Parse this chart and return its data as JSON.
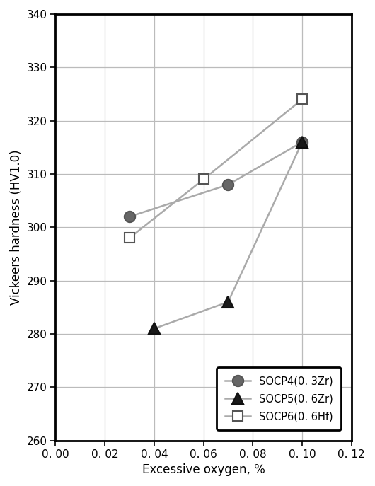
{
  "series": [
    {
      "label": "SOCP4(0. 3Zr)",
      "x": [
        0.03,
        0.07,
        0.1
      ],
      "y": [
        302,
        308,
        316
      ],
      "line_color": "#aaaaaa",
      "marker": "o",
      "marker_fc": "#666666",
      "marker_ec": "#555555",
      "markersize": 11,
      "linewidth": 1.8
    },
    {
      "label": "SOCP5(0. 6Zr)",
      "x": [
        0.04,
        0.07,
        0.1
      ],
      "y": [
        281,
        286,
        316
      ],
      "line_color": "#aaaaaa",
      "marker": "^",
      "marker_fc": "#1a1a1a",
      "marker_ec": "#111111",
      "markersize": 12,
      "linewidth": 1.8
    },
    {
      "label": "SOCP6(0. 6Hf)",
      "x": [
        0.03,
        0.06,
        0.1
      ],
      "y": [
        298,
        309,
        324
      ],
      "line_color": "#aaaaaa",
      "marker": "s",
      "marker_fc": "#ffffff",
      "marker_ec": "#555555",
      "markersize": 10,
      "linewidth": 1.8
    }
  ],
  "xlim": [
    0.0,
    0.12
  ],
  "ylim": [
    260,
    340
  ],
  "xticks": [
    0.0,
    0.02,
    0.04,
    0.06,
    0.08,
    0.1,
    0.12
  ],
  "yticks": [
    260,
    270,
    280,
    290,
    300,
    310,
    320,
    330,
    340
  ],
  "xlabel": "Excessive oxygen, %",
  "ylabel": "Vickeers hardness (HV1.0)",
  "legend_loc": "lower right",
  "background_color": "#ffffff",
  "grid_color": "#bbbbbb",
  "spine_linewidth": 2.0
}
